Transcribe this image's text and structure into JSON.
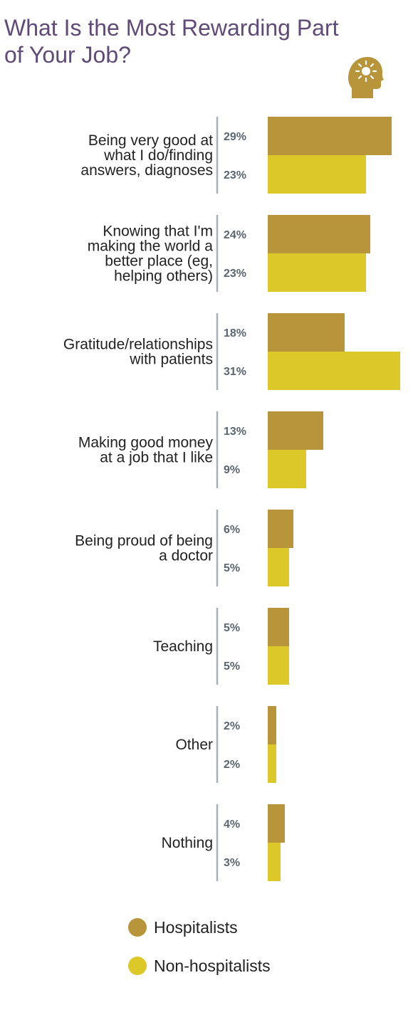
{
  "title_lines": [
    "What Is the Most Rewarding Part",
    "of Your Job?"
  ],
  "icon": "head-with-lightbulb-icon",
  "colors": {
    "title": "#5f4a78",
    "hospitalists": "#b8943a",
    "non_hospitalists": "#dcc829",
    "percent_text": "#5a6670",
    "divider": "#a9b0b8",
    "category_text": "#222222"
  },
  "chart_data": {
    "type": "bar",
    "orientation": "horizontal",
    "title": "What Is the Most Rewarding Part of Your Job?",
    "categories": [
      [
        "Being very good at",
        "what I do/finding",
        "answers, diagnoses"
      ],
      [
        "Knowing that I'm",
        "making the world a",
        "better place (eg,",
        "helping others)"
      ],
      [
        "Gratitude/relationships",
        "with patients"
      ],
      [
        "Making good money",
        "at a job that I like"
      ],
      [
        "Being proud of being",
        "a doctor"
      ],
      [
        "Teaching"
      ],
      [
        "Other"
      ],
      [
        "Nothing"
      ]
    ],
    "series": [
      {
        "name": "Hospitalists",
        "values": [
          29,
          24,
          18,
          13,
          6,
          5,
          2,
          4
        ],
        "labels": [
          "29%",
          "24%",
          "18%",
          "13%",
          "6%",
          "5%",
          "2%",
          "4%"
        ]
      },
      {
        "name": "Non-hospitalists",
        "values": [
          23,
          23,
          31,
          9,
          5,
          5,
          2,
          3
        ],
        "labels": [
          "23%",
          "23%",
          "31%",
          "9%",
          "5%",
          "5%",
          "2%",
          "3%"
        ]
      }
    ],
    "xlim": [
      0,
      31
    ],
    "grid": false,
    "legend_position": "bottom"
  }
}
